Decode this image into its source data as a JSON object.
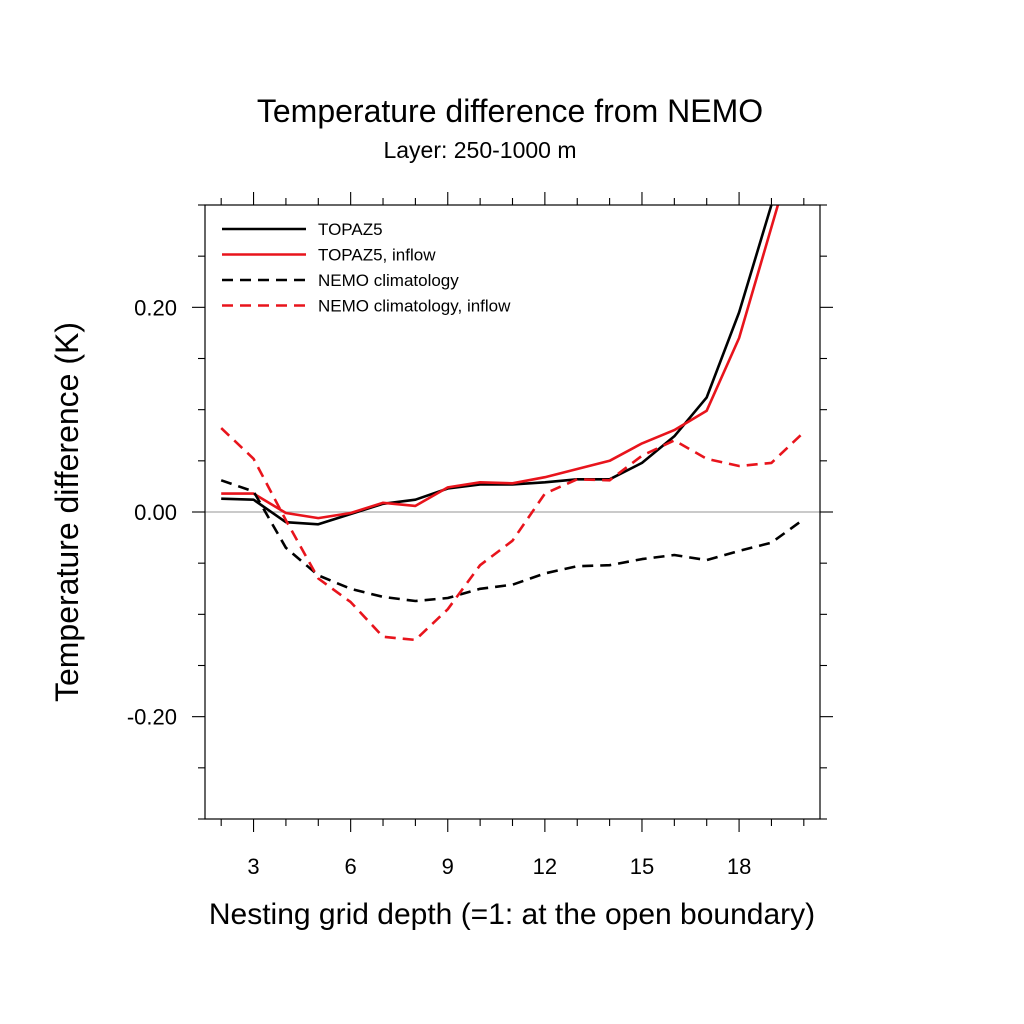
{
  "chart_data": {
    "type": "line",
    "title": "Temperature difference from NEMO",
    "subtitle": "Layer: 250-1000 m",
    "xlabel": "Nesting grid depth (=1: at the open boundary)",
    "ylabel": "Temperature difference (K)",
    "xlim": [
      1.5,
      20.5
    ],
    "ylim": [
      -0.3,
      0.3
    ],
    "x_ticks": [
      3,
      6,
      9,
      12,
      15,
      18
    ],
    "x_tick_labels": [
      "3",
      "6",
      "9",
      "12",
      "15",
      "18"
    ],
    "y_ticks": [
      -0.2,
      0,
      0.2
    ],
    "y_tick_labels": [
      "-0.20",
      "0.00",
      "0.20"
    ],
    "legend_position": "top-left",
    "zero_line": true,
    "colors": {
      "black": "#000000",
      "red": "#e8141c",
      "zero_line": "#aaaaaa"
    },
    "series": [
      {
        "name": "TOPAZ5",
        "color": "#000000",
        "dash": "solid",
        "x": [
          2,
          3,
          4,
          5,
          6,
          7,
          8,
          9,
          10,
          11,
          12,
          13,
          14,
          15,
          16,
          17,
          18,
          19
        ],
        "y": [
          0.013,
          0.012,
          -0.01,
          -0.012,
          -0.002,
          0.008,
          0.012,
          0.023,
          0.027,
          0.027,
          0.029,
          0.032,
          0.032,
          0.048,
          0.074,
          0.112,
          0.195,
          0.3
        ]
      },
      {
        "name": "TOPAZ5, inflow",
        "color": "#e8141c",
        "dash": "solid",
        "x": [
          2,
          3,
          4,
          5,
          6,
          7,
          8,
          9,
          10,
          11,
          12,
          13,
          14,
          15,
          16,
          17,
          18,
          19.2
        ],
        "y": [
          0.018,
          0.018,
          -0.001,
          -0.006,
          -0.001,
          0.009,
          0.006,
          0.024,
          0.029,
          0.028,
          0.034,
          0.042,
          0.05,
          0.067,
          0.08,
          0.099,
          0.17,
          0.3
        ]
      },
      {
        "name": "NEMO climatology",
        "color": "#000000",
        "dash": "dashed",
        "x": [
          2,
          3,
          4,
          5,
          6,
          7,
          8,
          9,
          10,
          11,
          12,
          13,
          14,
          15,
          16,
          17,
          18,
          19,
          20
        ],
        "y": [
          0.031,
          0.02,
          -0.035,
          -0.062,
          -0.075,
          -0.083,
          -0.087,
          -0.084,
          -0.075,
          -0.071,
          -0.06,
          -0.053,
          -0.052,
          -0.046,
          -0.042,
          -0.047,
          -0.038,
          -0.03,
          -0.007
        ]
      },
      {
        "name": "NEMO climatology, inflow",
        "color": "#e8141c",
        "dash": "dashed",
        "x": [
          2,
          3,
          4,
          5,
          6,
          7,
          8,
          9,
          10,
          11,
          12,
          13,
          14,
          15,
          16,
          17,
          18,
          19,
          20
        ],
        "y": [
          0.082,
          0.052,
          -0.008,
          -0.065,
          -0.088,
          -0.122,
          -0.125,
          -0.095,
          -0.052,
          -0.028,
          0.018,
          0.032,
          0.031,
          0.055,
          0.07,
          0.052,
          0.045,
          0.048,
          0.078
        ]
      }
    ]
  }
}
